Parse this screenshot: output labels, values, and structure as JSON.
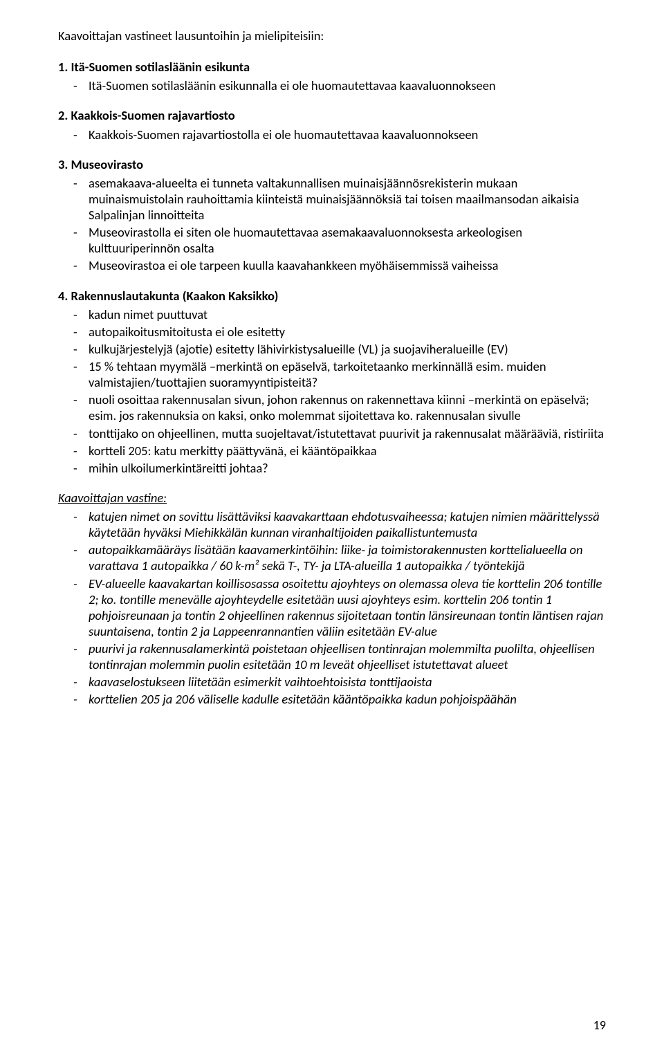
{
  "intro": "Kaavoittajan vastineet lausuntoihin ja mielipiteisiin:",
  "sections": {
    "s1": {
      "heading": "1. Itä-Suomen sotilasläänin esikunta",
      "items": [
        "Itä-Suomen sotilasläänin esikunnalla ei ole huomautettavaa kaavaluonnokseen"
      ]
    },
    "s2": {
      "heading": "2. Kaakkois-Suomen rajavartiosto",
      "items": [
        "Kaakkois-Suomen rajavartiostolla ei ole huomautettavaa kaavaluonnokseen"
      ]
    },
    "s3": {
      "heading": "3. Museovirasto",
      "items": [
        "asemakaava-alueelta ei tunneta valtakunnallisen muinaisjäännösrekisterin mukaan muinaismuistolain rauhoittamia kiinteistä muinaisjäännöksiä tai toisen maailmansodan aikaisia Salpalinjan linnoitteita",
        "Museovirastolla ei siten ole huomautettavaa asemakaavaluonnoksesta arkeologisen kulttuuriperinnön osalta",
        "Museovirastoa ei ole tarpeen kuulla kaavahankkeen myöhäisemmissä vaiheissa"
      ]
    },
    "s4": {
      "heading": "4. Rakennuslautakunta (Kaakon Kaksikko)",
      "items": [
        "kadun nimet puuttuvat",
        "autopaikoitusmitoitusta ei ole esitetty",
        "kulkujärjestelyjä (ajotie) esitetty lähivirkistysalueille (VL) ja suojaviheralueille (EV)",
        "15 % tehtaan myymälä –merkintä on epäselvä, tarkoitetaanko merkinnällä esim. muiden valmistajien/tuottajien suoramyyntipisteitä?",
        "nuoli osoittaa rakennusalan sivun, johon rakennus on rakennettava kiinni –merkintä on epäselvä; esim. jos rakennuksia on kaksi, onko molemmat sijoitettava ko. rakennusalan sivulle",
        "tonttijako on ohjeellinen, mutta suojeltavat/istutettavat puurivit ja rakennusalat määrääviä, ristiriita",
        "kortteli 205: katu merkitty päättyvänä, ei kääntöpaikkaa",
        "mihin ulkoilumerkintäreitti johtaa?"
      ]
    },
    "response": {
      "heading": "Kaavoittajan vastine:",
      "items": [
        "katujen nimet on sovittu lisättäviksi kaavakarttaan ehdotusvaiheessa; katujen nimien määrittelyssä käytetään hyväksi Miehikkälän kunnan viranhaltijoiden paikallistuntemusta",
        "autopaikkamääräys lisätään kaavamerkintöihin: liike- ja toimistorakennusten korttelialueella on varattava 1 autopaikka / 60 k-m² sekä T-, TY- ja LTA-alueilla 1 autopaikka / työntekijä",
        "EV-alueelle kaavakartan koillisosassa osoitettu ajoyhteys on olemassa oleva tie korttelin 206 tontille 2; ko. tontille menevälle ajoyhteydelle esitetään uusi ajoyhteys esim. korttelin 206 tontin 1 pohjoisreunaan ja tontin 2 ohjeellinen rakennus sijoitetaan tontin länsireunaan tontin läntisen rajan suuntaisena, tontin 2 ja Lappeenrannantien väliin esitetään EV-alue",
        "puurivi ja rakennusalamerkintä poistetaan ohjeellisen tontinrajan molemmilta puolilta, ohjeellisen tontinrajan molemmin puolin esitetään 10 m leveät ohjeelliset istutettavat alueet",
        "kaavaselostukseen liitetään esimerkit vaihtoehtoisista tonttijaoista",
        "korttelien 205 ja 206 väliselle kadulle esitetään kääntöpaikka kadun pohjoispäähän"
      ]
    }
  },
  "page_number": "19"
}
